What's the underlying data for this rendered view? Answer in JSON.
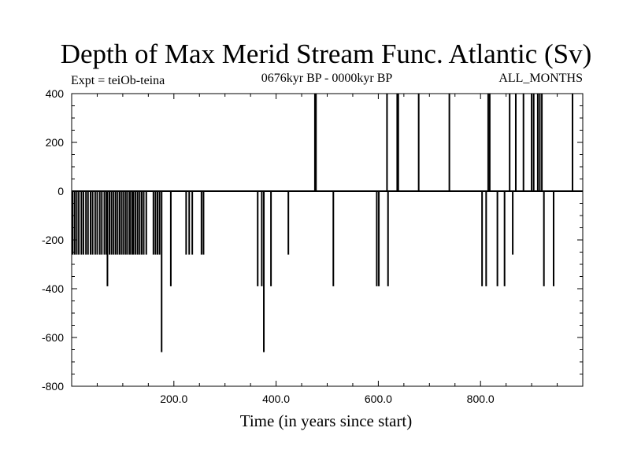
{
  "chart_data": {
    "type": "bar",
    "title": "Depth of Max Merid Stream Func. Atlantic (Sv)",
    "subtitle_left": "Expt = teiOb-teina",
    "subtitle_center": "0676kyr BP - 0000kyr BP",
    "subtitle_right": "ALL_MONTHS",
    "xlabel": "Time (in years since start)",
    "ylabel": "",
    "xlim": [
      0,
      1000
    ],
    "ylim": [
      -800,
      400
    ],
    "x_ticks": [
      {
        "value": 200,
        "label": "200.0"
      },
      {
        "value": 400,
        "label": "400.0"
      },
      {
        "value": 600,
        "label": "600.0"
      },
      {
        "value": 800,
        "label": "800.0"
      }
    ],
    "y_ticks": [
      {
        "value": 400,
        "label": "400"
      },
      {
        "value": 200,
        "label": "200"
      },
      {
        "value": 0,
        "label": "0"
      },
      {
        "value": -200,
        "label": "-200"
      },
      {
        "value": -400,
        "label": "-400"
      },
      {
        "value": -600,
        "label": "-600"
      },
      {
        "value": -800,
        "label": "-800"
      }
    ],
    "grid": false,
    "baseline": 0,
    "series": [
      {
        "spikes": [
          {
            "x": 2,
            "y": -260
          },
          {
            "x": 6,
            "y": -260
          },
          {
            "x": 10,
            "y": -260
          },
          {
            "x": 14,
            "y": -260
          },
          {
            "x": 19,
            "y": -260
          },
          {
            "x": 23,
            "y": -260
          },
          {
            "x": 28,
            "y": -260
          },
          {
            "x": 32,
            "y": -260
          },
          {
            "x": 37,
            "y": -260
          },
          {
            "x": 41,
            "y": -260
          },
          {
            "x": 46,
            "y": -260
          },
          {
            "x": 50,
            "y": -260
          },
          {
            "x": 55,
            "y": -260
          },
          {
            "x": 59,
            "y": -260
          },
          {
            "x": 64,
            "y": -260
          },
          {
            "x": 68,
            "y": -260
          },
          {
            "x": 70,
            "y": -390
          },
          {
            "x": 74,
            "y": -260
          },
          {
            "x": 78,
            "y": -260
          },
          {
            "x": 82,
            "y": -260
          },
          {
            "x": 86,
            "y": -260
          },
          {
            "x": 90,
            "y": -260
          },
          {
            "x": 94,
            "y": -260
          },
          {
            "x": 98,
            "y": -260
          },
          {
            "x": 102,
            "y": -260
          },
          {
            "x": 106,
            "y": -260
          },
          {
            "x": 110,
            "y": -260
          },
          {
            "x": 114,
            "y": -260
          },
          {
            "x": 118,
            "y": -260
          },
          {
            "x": 121,
            "y": -260
          },
          {
            "x": 125,
            "y": -260
          },
          {
            "x": 129,
            "y": -260
          },
          {
            "x": 133,
            "y": -260
          },
          {
            "x": 137,
            "y": -260
          },
          {
            "x": 141,
            "y": -260
          },
          {
            "x": 146,
            "y": -260
          },
          {
            "x": 160,
            "y": -260
          },
          {
            "x": 164,
            "y": -260
          },
          {
            "x": 168,
            "y": -260
          },
          {
            "x": 172,
            "y": -260
          },
          {
            "x": 176,
            "y": -660
          },
          {
            "x": 194,
            "y": -390
          },
          {
            "x": 224,
            "y": -260
          },
          {
            "x": 230,
            "y": -260
          },
          {
            "x": 236,
            "y": -260
          },
          {
            "x": 254,
            "y": -260
          },
          {
            "x": 258,
            "y": -260
          },
          {
            "x": 364,
            "y": -390
          },
          {
            "x": 372,
            "y": -390
          },
          {
            "x": 376,
            "y": -660
          },
          {
            "x": 390,
            "y": -390
          },
          {
            "x": 424,
            "y": -260
          },
          {
            "x": 476,
            "y": 400
          },
          {
            "x": 478,
            "y": 400
          },
          {
            "x": 512,
            "y": -390
          },
          {
            "x": 597,
            "y": -390
          },
          {
            "x": 601,
            "y": -390
          },
          {
            "x": 617,
            "y": 400
          },
          {
            "x": 619,
            "y": -390
          },
          {
            "x": 637,
            "y": 400
          },
          {
            "x": 639,
            "y": 400
          },
          {
            "x": 679,
            "y": 400
          },
          {
            "x": 739,
            "y": 400
          },
          {
            "x": 803,
            "y": -390
          },
          {
            "x": 811,
            "y": -390
          },
          {
            "x": 815,
            "y": 400
          },
          {
            "x": 818,
            "y": 400
          },
          {
            "x": 833,
            "y": -390
          },
          {
            "x": 847,
            "y": -390
          },
          {
            "x": 857,
            "y": 400
          },
          {
            "x": 863,
            "y": -260
          },
          {
            "x": 869,
            "y": 400
          },
          {
            "x": 884,
            "y": 400
          },
          {
            "x": 900,
            "y": 400
          },
          {
            "x": 904,
            "y": 400
          },
          {
            "x": 912,
            "y": 400
          },
          {
            "x": 916,
            "y": 400
          },
          {
            "x": 920,
            "y": 400
          },
          {
            "x": 924,
            "y": -390
          },
          {
            "x": 943,
            "y": -390
          },
          {
            "x": 980,
            "y": 400
          }
        ]
      }
    ]
  }
}
